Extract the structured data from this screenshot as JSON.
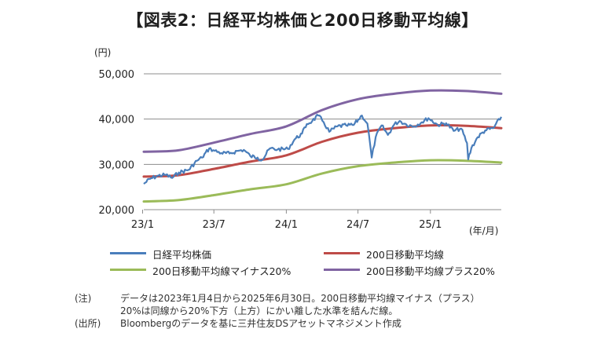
{
  "title": "【図表2：日経平均株価と200日移動平均線】",
  "chart_data": {
    "type": "line",
    "y_unit": "(円)",
    "x_unit": "(年/月)",
    "ylim": [
      20000,
      50000
    ],
    "yticks": [
      20000,
      30000,
      40000,
      50000
    ],
    "ytick_labels": [
      "20,000",
      "30,000",
      "40,000",
      "50,000"
    ],
    "xlim": [
      "2023-01-04",
      "2025-06-30"
    ],
    "xticks": [
      "2023-01",
      "2023-07",
      "2024-01",
      "2024-07",
      "2025-01"
    ],
    "xtick_labels": [
      "23/1",
      "23/7",
      "24/1",
      "24/7",
      "25/1"
    ],
    "grid": "horizontal",
    "legend": "bottom",
    "series": [
      {
        "name": "日経平均株価",
        "color": "#4a7ebb",
        "x": [
          "2023-01-04",
          "2023-01-20",
          "2023-02-10",
          "2023-03-01",
          "2023-03-17",
          "2023-04-03",
          "2023-04-28",
          "2023-05-19",
          "2023-06-01",
          "2023-06-19",
          "2023-07-03",
          "2023-07-20",
          "2023-08-10",
          "2023-09-01",
          "2023-09-15",
          "2023-10-02",
          "2023-10-20",
          "2023-11-01",
          "2023-11-20",
          "2023-12-10",
          "2024-01-05",
          "2024-01-22",
          "2024-02-10",
          "2024-02-22",
          "2024-03-07",
          "2024-03-22",
          "2024-04-05",
          "2024-04-19",
          "2024-05-10",
          "2024-06-01",
          "2024-06-20",
          "2024-07-11",
          "2024-07-25",
          "2024-08-05",
          "2024-08-15",
          "2024-08-30",
          "2024-09-15",
          "2024-10-01",
          "2024-10-15",
          "2024-11-01",
          "2024-11-20",
          "2024-12-10",
          "2024-12-27",
          "2025-01-20",
          "2025-02-10",
          "2025-03-01",
          "2025-03-20",
          "2025-04-04",
          "2025-04-07",
          "2025-04-15",
          "2025-05-01",
          "2025-05-20",
          "2025-06-10",
          "2025-06-30"
        ],
        "values": [
          25700,
          26800,
          27500,
          27700,
          27000,
          28200,
          28800,
          30800,
          31500,
          33500,
          33000,
          32500,
          32400,
          33000,
          33200,
          31800,
          31500,
          31000,
          33500,
          33300,
          33400,
          35500,
          36800,
          38900,
          39600,
          40800,
          39300,
          37200,
          38400,
          38600,
          38700,
          40800,
          39000,
          31500,
          36000,
          38600,
          36500,
          38800,
          39600,
          38800,
          38400,
          39300,
          40200,
          38700,
          39100,
          37400,
          37900,
          34700,
          31100,
          33600,
          36000,
          37500,
          38000,
          40500
        ]
      },
      {
        "name": "200日移動平均線",
        "color": "#be4b48",
        "x": [
          "2023-01-04",
          "2023-04-01",
          "2023-07-01",
          "2023-10-01",
          "2024-01-01",
          "2024-04-01",
          "2024-07-01",
          "2024-10-01",
          "2025-01-01",
          "2025-04-01",
          "2025-06-30"
        ],
        "values": [
          27300,
          27600,
          29000,
          30600,
          32000,
          35000,
          37000,
          38000,
          38600,
          38500,
          38000
        ]
      },
      {
        "name": "200日移動平均線マイナス20%",
        "color": "#9bbb59",
        "x": [
          "2023-01-04",
          "2023-04-01",
          "2023-07-01",
          "2023-10-01",
          "2024-01-01",
          "2024-04-01",
          "2024-07-01",
          "2024-10-01",
          "2025-01-01",
          "2025-04-01",
          "2025-06-30"
        ],
        "values": [
          21800,
          22100,
          23200,
          24500,
          25600,
          28000,
          29600,
          30400,
          30900,
          30800,
          30400
        ]
      },
      {
        "name": "200日移動平均線プラス20%",
        "color": "#8064a2",
        "x": [
          "2023-01-04",
          "2023-04-01",
          "2023-07-01",
          "2023-10-01",
          "2024-01-01",
          "2024-04-01",
          "2024-07-01",
          "2024-10-01",
          "2025-01-01",
          "2025-04-01",
          "2025-06-30"
        ],
        "values": [
          32800,
          33100,
          34800,
          36700,
          38400,
          42000,
          44400,
          45600,
          46300,
          46200,
          45600
        ]
      }
    ]
  },
  "notes": [
    {
      "tag": "(注)",
      "lines": [
        "データは2023年1月4日から2025年6月30日。200日移動平均線マイナス（プラス）",
        "20%は同線から20%下方（上方）にかい離した水準を結んだ線。"
      ]
    },
    {
      "tag": "(出所)",
      "lines": [
        "Bloombergのデータを基に三井住友DSアセットマネジメント作成"
      ]
    }
  ]
}
